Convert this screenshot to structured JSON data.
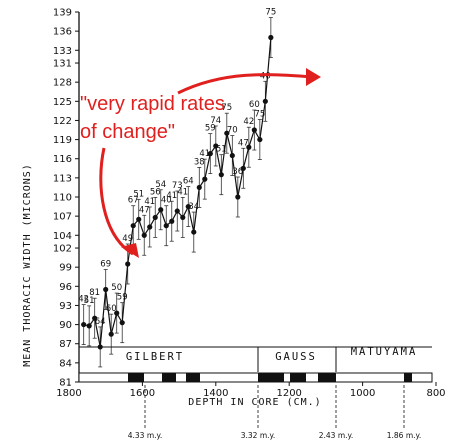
{
  "chart_data": {
    "type": "line",
    "title": "",
    "ylabel": "MEAN THORACIC WIDTH (MICRONS)",
    "xlabel": "DEPTH IN CORE (CM.)",
    "ylim": [
      81,
      139
    ],
    "xlim": [
      1800,
      800
    ],
    "y_ticks": [
      81,
      84,
      87,
      90,
      93,
      96,
      99,
      102,
      104,
      107,
      110,
      113,
      116,
      119,
      122,
      125,
      128,
      131,
      133,
      136,
      139
    ],
    "x_ticks": [
      1800,
      1600,
      1400,
      1200,
      1000,
      800
    ],
    "x_tick_labels": [
      "1800",
      "1600",
      "1400",
      "1200",
      "1000",
      "800"
    ],
    "error_bars": true,
    "series": [
      {
        "points": [
          {
            "x": 1760,
            "y": 90.0,
            "n": "42"
          },
          {
            "x": 1745,
            "y": 89.8,
            "n": "51"
          },
          {
            "x": 1730,
            "y": 91.0,
            "n": "81"
          },
          {
            "x": 1715,
            "y": 86.5,
            "n": "64"
          },
          {
            "x": 1700,
            "y": 95.5,
            "n": "69"
          },
          {
            "x": 1685,
            "y": 88.5,
            "n": "60"
          },
          {
            "x": 1670,
            "y": 91.8,
            "n": "50"
          },
          {
            "x": 1655,
            "y": 90.3,
            "n": "59"
          },
          {
            "x": 1640,
            "y": 99.5,
            "n": "49"
          },
          {
            "x": 1625,
            "y": 105.5,
            "n": "67"
          },
          {
            "x": 1610,
            "y": 106.5,
            "n": "51"
          },
          {
            "x": 1595,
            "y": 104.0,
            "n": "47"
          },
          {
            "x": 1580,
            "y": 105.3,
            "n": "41"
          },
          {
            "x": 1565,
            "y": 106.8,
            "n": "56"
          },
          {
            "x": 1550,
            "y": 108.0,
            "n": "54"
          },
          {
            "x": 1535,
            "y": 105.5,
            "n": "40"
          },
          {
            "x": 1520,
            "y": 106.2,
            "n": "41"
          },
          {
            "x": 1505,
            "y": 107.8,
            "n": "73"
          },
          {
            "x": 1490,
            "y": 106.8,
            "n": "41"
          },
          {
            "x": 1475,
            "y": 108.5,
            "n": "64"
          },
          {
            "x": 1460,
            "y": 104.5,
            "n": "34"
          },
          {
            "x": 1445,
            "y": 111.5,
            "n": "38"
          },
          {
            "x": 1430,
            "y": 112.8,
            "n": "41"
          },
          {
            "x": 1415,
            "y": 116.8,
            "n": "59"
          },
          {
            "x": 1400,
            "y": 118.0,
            "n": "74"
          },
          {
            "x": 1385,
            "y": 113.5,
            "n": "51"
          },
          {
            "x": 1370,
            "y": 120.0,
            "n": "75"
          },
          {
            "x": 1355,
            "y": 116.5,
            "n": "70"
          },
          {
            "x": 1340,
            "y": 110.0,
            "n": "36"
          },
          {
            "x": 1325,
            "y": 114.5,
            "n": "47"
          },
          {
            "x": 1310,
            "y": 117.8,
            "n": "42"
          },
          {
            "x": 1295,
            "y": 120.5,
            "n": "60"
          },
          {
            "x": 1280,
            "y": 119.0,
            "n": "75"
          },
          {
            "x": 1265,
            "y": 125.0,
            "n": "40"
          },
          {
            "x": 1250,
            "y": 135.0,
            "n": "75"
          }
        ]
      }
    ],
    "annotation": {
      "text_line1": "\"very rapid rates",
      "text_line2": "of change\"",
      "color": "#e0201e"
    },
    "chrons": [
      {
        "label": "GILBERT"
      },
      {
        "label": "GAUSS"
      },
      {
        "label": "MATUYAMA"
      }
    ],
    "ages": [
      "4.33 m.y.",
      "3.32 m.y.",
      "2.43 m.y.",
      "1.86 m.y."
    ]
  }
}
